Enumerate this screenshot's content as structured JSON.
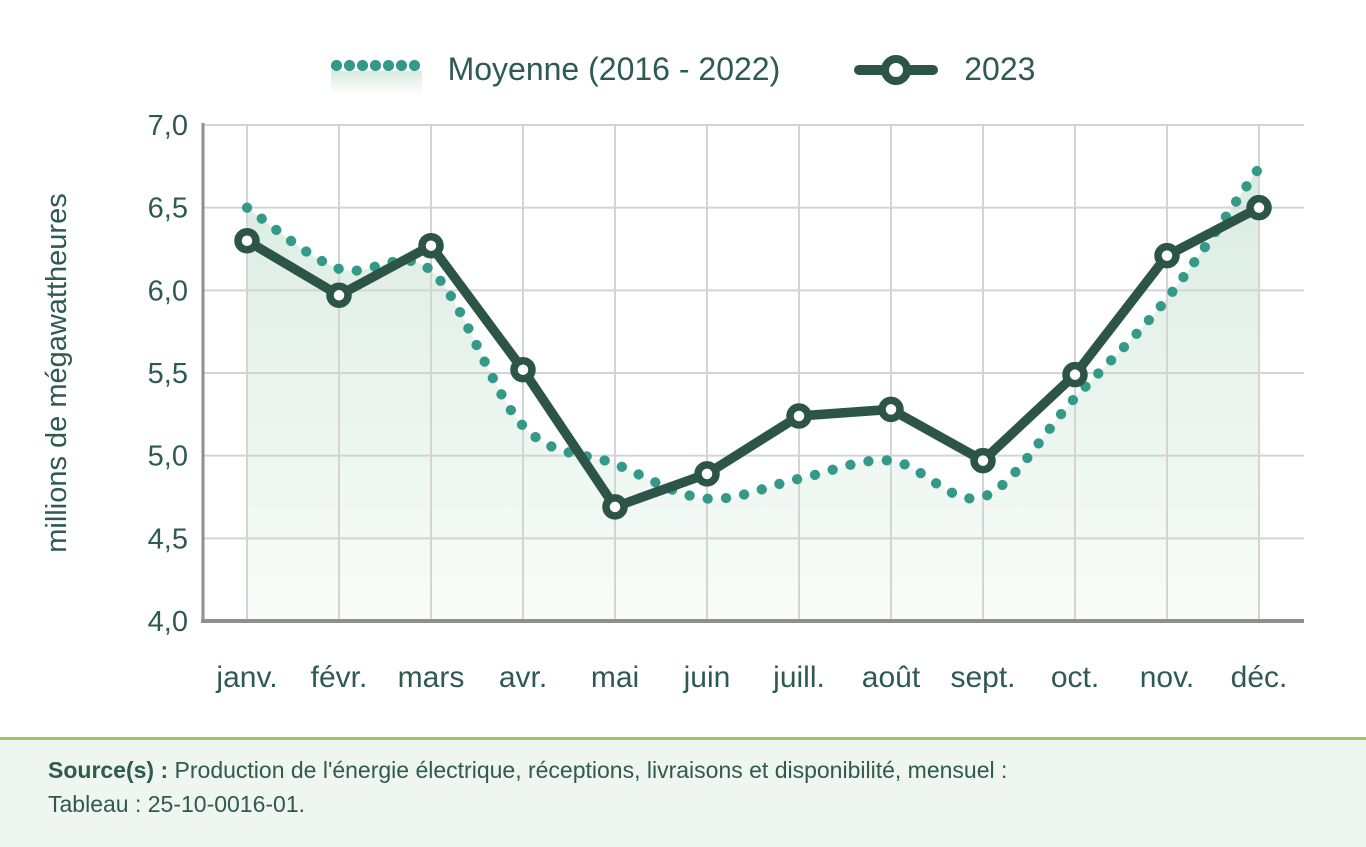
{
  "legend": {
    "items": [
      {
        "label": "Moyenne (2016 - 2022)",
        "series": "moyenne"
      },
      {
        "label": "2023",
        "series": "2023"
      }
    ]
  },
  "y_axis": {
    "title": "millions de mégawattheures",
    "tick_labels": [
      "7,0",
      "6,5",
      "6,0",
      "5,5",
      "5,0",
      "4,5",
      "4,0"
    ]
  },
  "x_axis": {
    "tick_labels": [
      "janv.",
      "févr.",
      "mars",
      "avr.",
      "mai",
      "juin",
      "juill.",
      "août",
      "sept.",
      "oct.",
      "nov.",
      "déc."
    ]
  },
  "source": {
    "bold_label": "Source(s) :",
    "line1": "Production de l'énergie électrique, réceptions, livraisons et disponibilité, mensuel :",
    "line2": "Tableau : 25-10-0016-01."
  },
  "colors": {
    "text": "#2e5a50",
    "line_2023": "#2c5548",
    "teal_moyenne": "#35998a",
    "gridline": "#d4d4d4",
    "axis": "#8f8f8f",
    "area_fill_top": "#d7ebdf",
    "area_fill_bottom": "#f9fcf9",
    "footer_divider": "#9bc95e",
    "footer_background": "#eff5ef"
  },
  "chart_data": {
    "type": "line",
    "categories": [
      "janv.",
      "févr.",
      "mars",
      "avr.",
      "mai",
      "juin",
      "juill.",
      "août",
      "sept.",
      "oct.",
      "nov.",
      "déc."
    ],
    "series": [
      {
        "name": "Moyenne (2016 - 2022)",
        "style": "dotted smoothed line with gradient area fill",
        "color": "#35998a",
        "values": [
          6.5,
          6.13,
          6.12,
          5.18,
          4.95,
          4.74,
          4.86,
          4.97,
          4.75,
          5.35,
          5.95,
          6.74
        ]
      },
      {
        "name": "2023",
        "style": "solid line with circular markers",
        "color": "#2c5548",
        "values": [
          6.3,
          5.97,
          6.27,
          5.52,
          4.69,
          4.89,
          5.24,
          5.28,
          4.97,
          5.49,
          6.21,
          6.5
        ]
      }
    ],
    "title": "",
    "xlabel": "",
    "ylabel": "millions de mégawattheures",
    "ylim": [
      4.0,
      7.0
    ],
    "ytick_step": 0.5,
    "grid": true,
    "legend_position": "top"
  }
}
